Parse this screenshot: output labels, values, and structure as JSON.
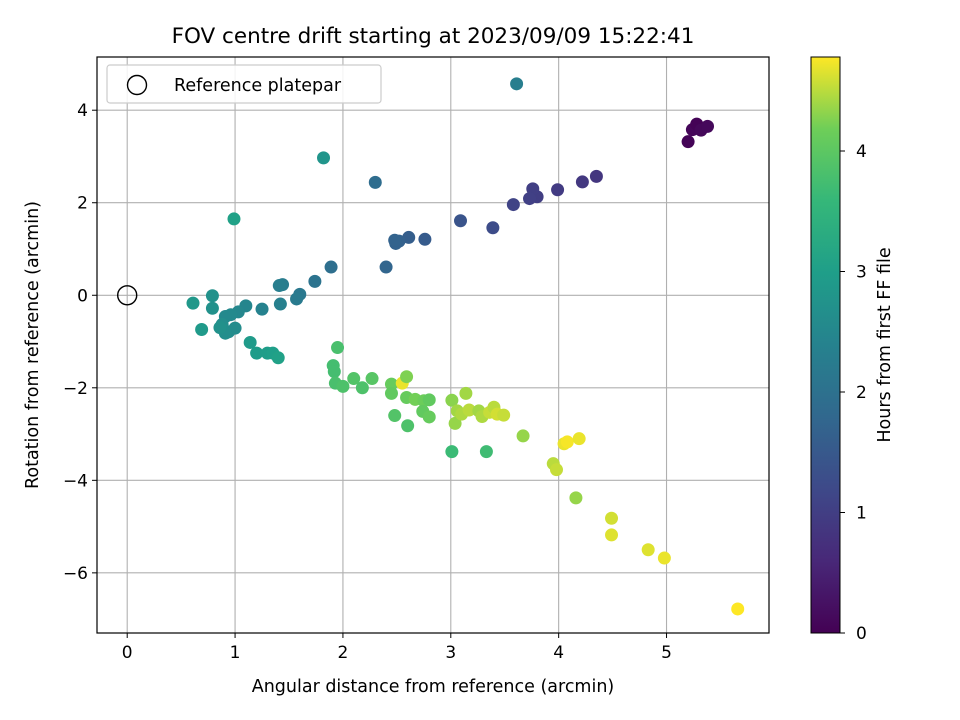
{
  "chart_data": {
    "type": "scatter",
    "title": "FOV centre drift starting at 2023/09/09 15:22:41",
    "xlabel": "Angular distance from reference (arcmin)",
    "ylabel": "Rotation from reference (arcmin)",
    "xlim": [
      -0.28,
      5.95
    ],
    "ylim": [
      -7.3,
      5.15
    ],
    "x_ticks": [
      0,
      1,
      2,
      3,
      4,
      5
    ],
    "x_tick_labels": [
      "0",
      "1",
      "2",
      "3",
      "4",
      "5"
    ],
    "y_ticks": [
      -6,
      -4,
      -2,
      0,
      2,
      4
    ],
    "y_tick_labels": [
      "−6",
      "−4",
      "−2",
      "0",
      "2",
      "4"
    ],
    "grid": true,
    "legend": {
      "placement": "top-left",
      "entries": [
        {
          "label": "Reference platepar",
          "marker": "open-circle"
        }
      ]
    },
    "reference_point": {
      "x": 0,
      "y": 0
    },
    "colorbar": {
      "label": "Hours from first FF file",
      "colormap": "viridis",
      "range": [
        0,
        4.78
      ],
      "ticks": [
        0,
        1,
        2,
        3,
        4
      ],
      "tick_labels": [
        "0",
        "1",
        "2",
        "3",
        "4"
      ]
    },
    "points": [
      {
        "x": 5.2,
        "y": 3.32,
        "c": 0.05
      },
      {
        "x": 5.24,
        "y": 3.58,
        "c": 0.08
      },
      {
        "x": 5.28,
        "y": 3.7,
        "c": 0.03
      },
      {
        "x": 5.32,
        "y": 3.57,
        "c": 0.1
      },
      {
        "x": 5.38,
        "y": 3.65,
        "c": 0.12
      },
      {
        "x": 4.35,
        "y": 2.57,
        "c": 0.85
      },
      {
        "x": 4.22,
        "y": 2.45,
        "c": 0.88
      },
      {
        "x": 3.99,
        "y": 2.28,
        "c": 0.95
      },
      {
        "x": 3.8,
        "y": 2.13,
        "c": 1.0
      },
      {
        "x": 3.76,
        "y": 2.3,
        "c": 1.02
      },
      {
        "x": 3.73,
        "y": 2.09,
        "c": 1.04
      },
      {
        "x": 3.58,
        "y": 1.96,
        "c": 1.1
      },
      {
        "x": 3.39,
        "y": 1.46,
        "c": 1.25
      },
      {
        "x": 3.09,
        "y": 1.61,
        "c": 1.4
      },
      {
        "x": 2.76,
        "y": 1.21,
        "c": 1.55
      },
      {
        "x": 2.61,
        "y": 1.25,
        "c": 1.6
      },
      {
        "x": 2.52,
        "y": 1.17,
        "c": 1.65
      },
      {
        "x": 2.49,
        "y": 1.12,
        "c": 1.68
      },
      {
        "x": 2.48,
        "y": 1.19,
        "c": 1.7
      },
      {
        "x": 2.4,
        "y": 0.61,
        "c": 1.75
      },
      {
        "x": 2.3,
        "y": 2.44,
        "c": 1.9
      },
      {
        "x": 1.89,
        "y": 0.61,
        "c": 1.95
      },
      {
        "x": 1.74,
        "y": 0.3,
        "c": 2.05
      },
      {
        "x": 1.6,
        "y": 0.02,
        "c": 2.15
      },
      {
        "x": 1.57,
        "y": -0.08,
        "c": 2.2
      },
      {
        "x": 1.44,
        "y": 0.23,
        "c": 2.25
      },
      {
        "x": 1.41,
        "y": 0.21,
        "c": 2.3
      },
      {
        "x": 1.42,
        "y": -0.19,
        "c": 2.35
      },
      {
        "x": 1.25,
        "y": -0.3,
        "c": 2.4
      },
      {
        "x": 1.1,
        "y": -0.23,
        "c": 2.45
      },
      {
        "x": 1.03,
        "y": -0.36,
        "c": 2.5
      },
      {
        "x": 0.96,
        "y": -0.42,
        "c": 2.55
      },
      {
        "x": 0.91,
        "y": -0.46,
        "c": 2.55
      },
      {
        "x": 1.0,
        "y": -0.71,
        "c": 2.6
      },
      {
        "x": 0.94,
        "y": -0.79,
        "c": 2.6
      },
      {
        "x": 0.91,
        "y": -0.82,
        "c": 2.65
      },
      {
        "x": 0.88,
        "y": -0.63,
        "c": 2.65
      },
      {
        "x": 0.86,
        "y": -0.7,
        "c": 2.7
      },
      {
        "x": 0.79,
        "y": -0.01,
        "c": 2.7
      },
      {
        "x": 0.79,
        "y": -0.28,
        "c": 2.72
      },
      {
        "x": 0.61,
        "y": -0.17,
        "c": 2.85
      },
      {
        "x": 0.69,
        "y": -0.74,
        "c": 2.9
      },
      {
        "x": 1.14,
        "y": -1.02,
        "c": 2.92
      },
      {
        "x": 1.2,
        "y": -1.25,
        "c": 2.95
      },
      {
        "x": 1.3,
        "y": -1.25,
        "c": 2.97
      },
      {
        "x": 1.35,
        "y": -1.25,
        "c": 3.0
      },
      {
        "x": 1.4,
        "y": -1.35,
        "c": 3.05
      },
      {
        "x": 1.82,
        "y": 2.97,
        "c": 2.8
      },
      {
        "x": 0.99,
        "y": 1.65,
        "c": 3.05
      },
      {
        "x": 3.61,
        "y": 4.57,
        "c": 2.3
      },
      {
        "x": 1.95,
        "y": -1.13,
        "c": 3.8
      },
      {
        "x": 1.91,
        "y": -1.52,
        "c": 3.75
      },
      {
        "x": 1.92,
        "y": -1.65,
        "c": 3.75
      },
      {
        "x": 1.93,
        "y": -1.9,
        "c": 3.8
      },
      {
        "x": 2.0,
        "y": -1.97,
        "c": 3.85
      },
      {
        "x": 2.1,
        "y": -1.8,
        "c": 3.9
      },
      {
        "x": 2.18,
        "y": -2.0,
        "c": 3.85
      },
      {
        "x": 2.27,
        "y": -1.8,
        "c": 3.95
      },
      {
        "x": 2.45,
        "y": -1.92,
        "c": 4.1
      },
      {
        "x": 2.45,
        "y": -2.12,
        "c": 4.05
      },
      {
        "x": 2.55,
        "y": -1.9,
        "c": 4.7
      },
      {
        "x": 2.59,
        "y": -1.76,
        "c": 4.25
      },
      {
        "x": 2.59,
        "y": -2.21,
        "c": 4.1
      },
      {
        "x": 2.67,
        "y": -2.25,
        "c": 4.2
      },
      {
        "x": 2.75,
        "y": -2.28,
        "c": 4.15
      },
      {
        "x": 2.74,
        "y": -2.51,
        "c": 4.05
      },
      {
        "x": 2.8,
        "y": -2.63,
        "c": 4.1
      },
      {
        "x": 2.8,
        "y": -2.26,
        "c": 4.05
      },
      {
        "x": 2.48,
        "y": -2.6,
        "c": 3.9
      },
      {
        "x": 2.6,
        "y": -2.82,
        "c": 3.85
      },
      {
        "x": 3.01,
        "y": -2.27,
        "c": 4.3
      },
      {
        "x": 3.04,
        "y": -2.77,
        "c": 4.35
      },
      {
        "x": 3.06,
        "y": -2.5,
        "c": 4.4
      },
      {
        "x": 3.1,
        "y": -2.57,
        "c": 4.45
      },
      {
        "x": 3.14,
        "y": -2.12,
        "c": 4.4
      },
      {
        "x": 3.17,
        "y": -2.48,
        "c": 4.5
      },
      {
        "x": 3.26,
        "y": -2.5,
        "c": 4.4
      },
      {
        "x": 3.29,
        "y": -2.62,
        "c": 4.45
      },
      {
        "x": 3.36,
        "y": -2.53,
        "c": 4.55
      },
      {
        "x": 3.4,
        "y": -2.42,
        "c": 4.5
      },
      {
        "x": 3.43,
        "y": -2.57,
        "c": 4.6
      },
      {
        "x": 3.49,
        "y": -2.59,
        "c": 4.55
      },
      {
        "x": 3.01,
        "y": -3.38,
        "c": 3.65
      },
      {
        "x": 3.33,
        "y": -3.38,
        "c": 3.7
      },
      {
        "x": 3.67,
        "y": -3.04,
        "c": 4.35
      },
      {
        "x": 4.05,
        "y": -3.21,
        "c": 4.7
      },
      {
        "x": 4.08,
        "y": -3.17,
        "c": 4.75
      },
      {
        "x": 4.19,
        "y": -3.1,
        "c": 4.7
      },
      {
        "x": 3.95,
        "y": -3.64,
        "c": 4.5
      },
      {
        "x": 3.98,
        "y": -3.77,
        "c": 4.55
      },
      {
        "x": 4.16,
        "y": -4.38,
        "c": 4.35
      },
      {
        "x": 4.49,
        "y": -4.82,
        "c": 4.6
      },
      {
        "x": 4.49,
        "y": -5.18,
        "c": 4.65
      },
      {
        "x": 4.83,
        "y": -5.5,
        "c": 4.65
      },
      {
        "x": 4.98,
        "y": -5.68,
        "c": 4.7
      },
      {
        "x": 5.66,
        "y": -6.78,
        "c": 4.78
      }
    ]
  }
}
